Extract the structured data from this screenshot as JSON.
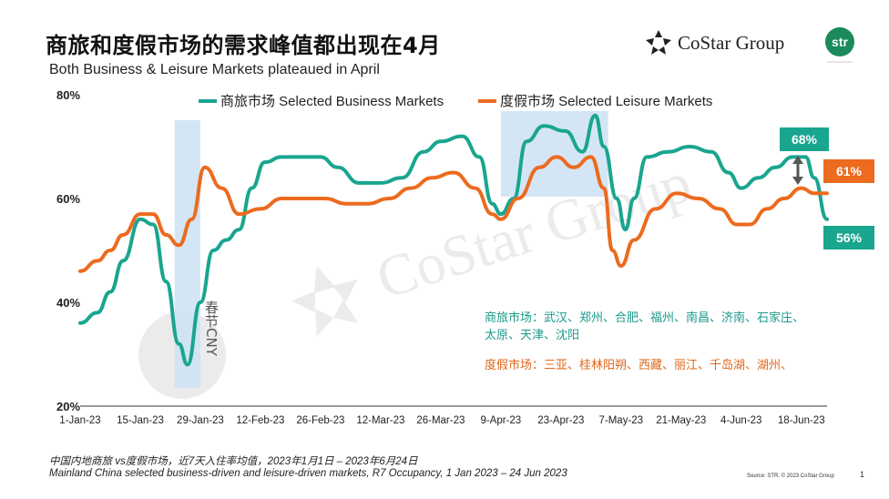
{
  "title": "商旅和度假市场的需求峰值都出现在4月",
  "subtitle": "Both Business & Leisure Markets plateaued in April",
  "logo": {
    "costar_text": "CoStar Group",
    "str_text": "str"
  },
  "footnote_cn": "中国内地商旅 vs度假市场，近7天入住率均值，2023年1月1日 – 2023年6月24日",
  "footnote_en": "Mainland China selected business-driven and leisure-driven markets, R7 Occupancy, 1 Jan 2023 – 24 Jun 2023",
  "source": "Source: STR. © 2023 CoStar Group",
  "page_number": "1",
  "notes": {
    "business": "商旅市场：武汉、郑州、合肥、福州、南昌、济南、石家庄、太原、天津、沈阳",
    "leisure": "度假市场：三亚、桂林阳朔、西藏、丽江、千岛湖、湖州、"
  },
  "cny_label": "春节CNY",
  "callouts": {
    "business_peak": "68%",
    "leisure_end": "61%",
    "business_end": "56%"
  },
  "colors": {
    "business": "#1aa58f",
    "leisure": "#ec6b1f",
    "highlight": "#cfe3f5"
  },
  "chart_data": {
    "type": "line",
    "title": "商旅和度假市场的需求峰值都出现在4月",
    "subtitle": "Both Business & Leisure Markets plateaued in April",
    "xlabel": "",
    "ylabel": "",
    "ylim": [
      20,
      80
    ],
    "yticks": [
      "20%",
      "40%",
      "60%",
      "80%"
    ],
    "yticks_values": [
      20,
      40,
      60,
      80
    ],
    "x_tick_labels": [
      "1-Jan-23",
      "15-Jan-23",
      "29-Jan-23",
      "12-Feb-23",
      "26-Feb-23",
      "12-Mar-23",
      "26-Mar-23",
      "9-Apr-23",
      "23-Apr-23",
      "7-May-23",
      "21-May-23",
      "4-Jun-23",
      "18-Jun-23"
    ],
    "legend_position": "top",
    "grid": false,
    "series": [
      {
        "name": "商旅市场 Selected Business Markets",
        "color": "#1aa58f",
        "points": [
          [
            "2023-01-01",
            36
          ],
          [
            "2023-01-05",
            38
          ],
          [
            "2023-01-08",
            42
          ],
          [
            "2023-01-11",
            48
          ],
          [
            "2023-01-15",
            56
          ],
          [
            "2023-01-18",
            55
          ],
          [
            "2023-01-21",
            44
          ],
          [
            "2023-01-24",
            32
          ],
          [
            "2023-01-26",
            28
          ],
          [
            "2023-01-29",
            40
          ],
          [
            "2023-02-01",
            50
          ],
          [
            "2023-02-04",
            52
          ],
          [
            "2023-02-07",
            54
          ],
          [
            "2023-02-10",
            62
          ],
          [
            "2023-02-13",
            67
          ],
          [
            "2023-02-17",
            68
          ],
          [
            "2023-02-21",
            68
          ],
          [
            "2023-02-26",
            68
          ],
          [
            "2023-03-02",
            66
          ],
          [
            "2023-03-07",
            63
          ],
          [
            "2023-03-12",
            63
          ],
          [
            "2023-03-17",
            64
          ],
          [
            "2023-03-22",
            69
          ],
          [
            "2023-03-26",
            71
          ],
          [
            "2023-03-31",
            72
          ],
          [
            "2023-04-04",
            68
          ],
          [
            "2023-04-07",
            59
          ],
          [
            "2023-04-09",
            57
          ],
          [
            "2023-04-12",
            60
          ],
          [
            "2023-04-15",
            71
          ],
          [
            "2023-04-19",
            74
          ],
          [
            "2023-04-24",
            73
          ],
          [
            "2023-04-28",
            69
          ],
          [
            "2023-05-01",
            76
          ],
          [
            "2023-05-03",
            70
          ],
          [
            "2023-05-06",
            60
          ],
          [
            "2023-05-08",
            54
          ],
          [
            "2023-05-10",
            60
          ],
          [
            "2023-05-13",
            68
          ],
          [
            "2023-05-18",
            69
          ],
          [
            "2023-05-23",
            70
          ],
          [
            "2023-05-28",
            69
          ],
          [
            "2023-06-01",
            65
          ],
          [
            "2023-06-04",
            62
          ],
          [
            "2023-06-08",
            64
          ],
          [
            "2023-06-12",
            66
          ],
          [
            "2023-06-16",
            68
          ],
          [
            "2023-06-19",
            68
          ],
          [
            "2023-06-21",
            64
          ],
          [
            "2023-06-24",
            56
          ]
        ]
      },
      {
        "name": "度假市场 Selected Leisure Markets",
        "color": "#ec6b1f",
        "points": [
          [
            "2023-01-01",
            46
          ],
          [
            "2023-01-05",
            48
          ],
          [
            "2023-01-08",
            50
          ],
          [
            "2023-01-11",
            53
          ],
          [
            "2023-01-15",
            57
          ],
          [
            "2023-01-18",
            57
          ],
          [
            "2023-01-21",
            53
          ],
          [
            "2023-01-24",
            51
          ],
          [
            "2023-01-27",
            56
          ],
          [
            "2023-01-30",
            66
          ],
          [
            "2023-02-03",
            62
          ],
          [
            "2023-02-07",
            57
          ],
          [
            "2023-02-12",
            58
          ],
          [
            "2023-02-17",
            60
          ],
          [
            "2023-02-22",
            60
          ],
          [
            "2023-02-27",
            60
          ],
          [
            "2023-03-04",
            59
          ],
          [
            "2023-03-09",
            59
          ],
          [
            "2023-03-14",
            60
          ],
          [
            "2023-03-19",
            62
          ],
          [
            "2023-03-24",
            64
          ],
          [
            "2023-03-29",
            65
          ],
          [
            "2023-04-03",
            62
          ],
          [
            "2023-04-07",
            57
          ],
          [
            "2023-04-09",
            56
          ],
          [
            "2023-04-13",
            60
          ],
          [
            "2023-04-18",
            66
          ],
          [
            "2023-04-22",
            68
          ],
          [
            "2023-04-26",
            66
          ],
          [
            "2023-04-30",
            68
          ],
          [
            "2023-05-03",
            62
          ],
          [
            "2023-05-05",
            50
          ],
          [
            "2023-05-07",
            47
          ],
          [
            "2023-05-10",
            52
          ],
          [
            "2023-05-15",
            58
          ],
          [
            "2023-05-20",
            61
          ],
          [
            "2023-05-25",
            60
          ],
          [
            "2023-05-30",
            58
          ],
          [
            "2023-06-03",
            55
          ],
          [
            "2023-06-06",
            55
          ],
          [
            "2023-06-10",
            58
          ],
          [
            "2023-06-14",
            60
          ],
          [
            "2023-06-18",
            62
          ],
          [
            "2023-06-21",
            61
          ],
          [
            "2023-06-24",
            61
          ]
        ]
      }
    ]
  }
}
